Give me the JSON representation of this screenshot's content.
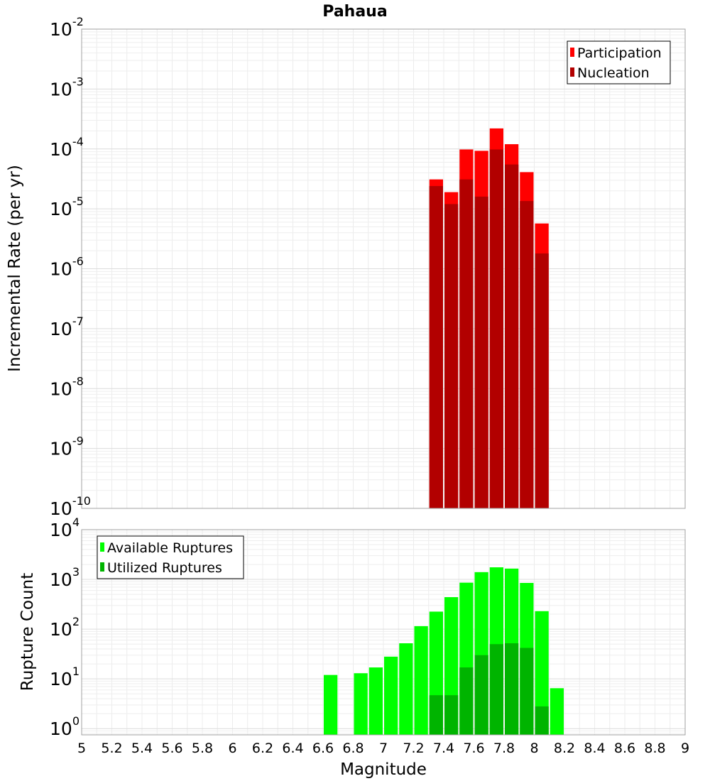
{
  "chart_data": [
    {
      "type": "bar",
      "title": "Pahaua",
      "xlabel": "",
      "ylabel": "Incremental Rate (per yr)",
      "yscale": "log",
      "ylim": [
        1e-10,
        0.01
      ],
      "xlim": [
        5,
        9
      ],
      "grid": true,
      "legend_position": "top-right",
      "bar_width": 0.1,
      "y_tick_exponents": [
        "-10",
        "-9",
        "-8",
        "-7",
        "-6",
        "-5",
        "-4",
        "-3",
        "-2"
      ],
      "series": [
        {
          "name": "Participation",
          "color": "#ff0000",
          "x": [
            7.35,
            7.45,
            7.55,
            7.65,
            7.75,
            7.85,
            7.95,
            8.05
          ],
          "values": [
            3.1e-05,
            1.9e-05,
            9.8e-05,
            9.3e-05,
            0.00022,
            0.00012,
            4.1e-05,
            5.7e-06
          ]
        },
        {
          "name": "Nucleation",
          "color": "#b20000",
          "x": [
            7.35,
            7.45,
            7.55,
            7.65,
            7.75,
            7.85,
            7.95,
            8.05
          ],
          "values": [
            2.4e-05,
            1.2e-05,
            3.1e-05,
            1.6e-05,
            9.8e-05,
            5.5e-05,
            1.35e-05,
            1.8e-06
          ]
        }
      ]
    },
    {
      "type": "bar",
      "title": "",
      "xlabel": "Magnitude",
      "ylabel": "Rupture Count",
      "yscale": "log",
      "ylim": [
        0.75,
        10000
      ],
      "xlim": [
        5,
        9
      ],
      "grid": true,
      "legend_position": "top-left",
      "bar_width": 0.1,
      "x_ticks": [
        "5",
        "5.2",
        "5.4",
        "5.6",
        "5.8",
        "6",
        "6.2",
        "6.4",
        "6.6",
        "6.8",
        "7",
        "7.2",
        "7.4",
        "7.6",
        "7.8",
        "8",
        "8.2",
        "8.4",
        "8.6",
        "8.8",
        "9"
      ],
      "y_tick_exponents": [
        "0",
        "1",
        "2",
        "3",
        "4"
      ],
      "series": [
        {
          "name": "Available Ruptures",
          "color": "#00ff00",
          "x": [
            6.65,
            6.85,
            6.95,
            7.05,
            7.15,
            7.25,
            7.35,
            7.45,
            7.55,
            7.65,
            7.75,
            7.85,
            7.95,
            8.05,
            8.15
          ],
          "values": [
            12,
            13,
            17,
            28,
            52,
            115,
            225,
            440,
            860,
            1400,
            1750,
            1650,
            850,
            230,
            6.5
          ]
        },
        {
          "name": "Utilized Ruptures",
          "color": "#00b400",
          "x": [
            7.35,
            7.45,
            7.55,
            7.65,
            7.75,
            7.85,
            7.95,
            8.05
          ],
          "values": [
            4.7,
            4.7,
            17,
            30,
            50,
            52,
            42,
            2.8
          ]
        }
      ]
    }
  ]
}
